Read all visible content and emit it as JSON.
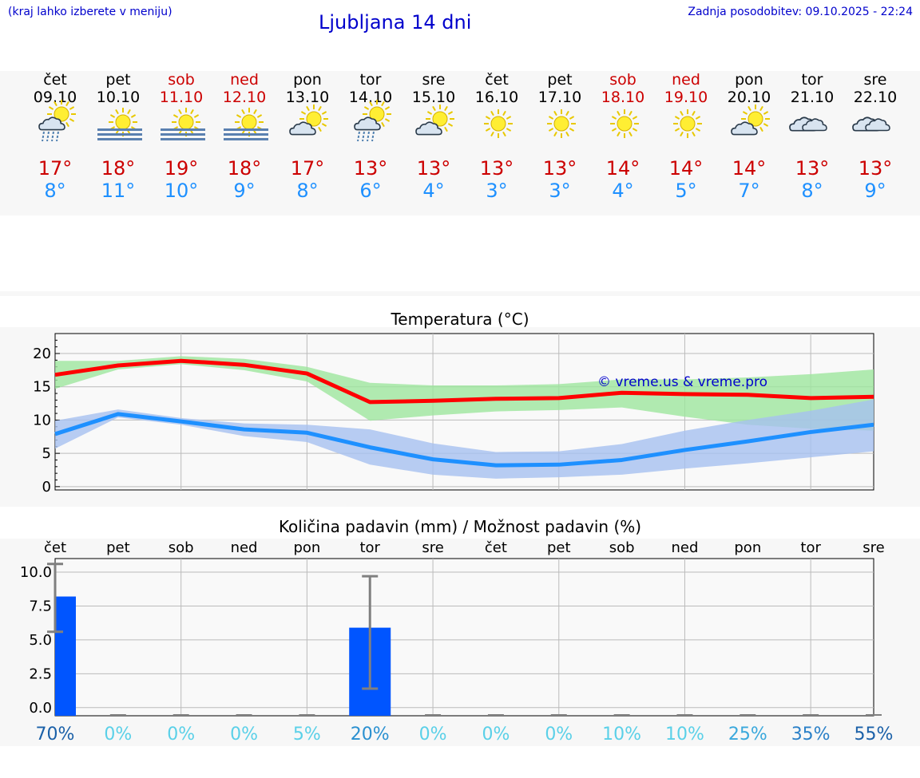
{
  "header": {
    "menu_hint": "(kraj lahko izberete v meniju)",
    "title": "Ljubljana 14 dni",
    "updated": "Zadnja posodobitev: 09.10.2025 - 22:24"
  },
  "colors": {
    "header_text": "#0000cc",
    "weekend": "#cc0000",
    "tmax": "#cc0000",
    "tmin": "#1e90ff",
    "tmax_band": "#9ee69e",
    "tmin_band": "#a6c0f0",
    "max_line": "#ff0000",
    "min_line": "#1e90ff",
    "bar": "#0055ff",
    "watermark": "#0000cc"
  },
  "days": [
    {
      "name": "čet",
      "date": "09.10",
      "weekend": false,
      "icon": "sun-cloud-rain-icon",
      "tmax": "17°",
      "tmin": "8°"
    },
    {
      "name": "pet",
      "date": "10.10",
      "weekend": false,
      "icon": "sun-fog-icon",
      "tmax": "18°",
      "tmin": "11°"
    },
    {
      "name": "sob",
      "date": "11.10",
      "weekend": true,
      "icon": "sun-fog-icon",
      "tmax": "19°",
      "tmin": "10°"
    },
    {
      "name": "ned",
      "date": "12.10",
      "weekend": true,
      "icon": "sun-fog-icon",
      "tmax": "18°",
      "tmin": "9°"
    },
    {
      "name": "pon",
      "date": "13.10",
      "weekend": false,
      "icon": "sun-cloud-icon",
      "tmax": "17°",
      "tmin": "8°"
    },
    {
      "name": "tor",
      "date": "14.10",
      "weekend": false,
      "icon": "sun-cloud-rain-icon",
      "tmax": "13°",
      "tmin": "6°"
    },
    {
      "name": "sre",
      "date": "15.10",
      "weekend": false,
      "icon": "sun-cloud-icon",
      "tmax": "13°",
      "tmin": "4°"
    },
    {
      "name": "čet",
      "date": "16.10",
      "weekend": false,
      "icon": "sun-icon",
      "tmax": "13°",
      "tmin": "3°"
    },
    {
      "name": "pet",
      "date": "17.10",
      "weekend": false,
      "icon": "sun-icon",
      "tmax": "13°",
      "tmin": "3°"
    },
    {
      "name": "sob",
      "date": "18.10",
      "weekend": true,
      "icon": "sun-icon",
      "tmax": "14°",
      "tmin": "4°"
    },
    {
      "name": "ned",
      "date": "19.10",
      "weekend": true,
      "icon": "sun-icon",
      "tmax": "14°",
      "tmin": "5°"
    },
    {
      "name": "pon",
      "date": "20.10",
      "weekend": false,
      "icon": "sun-cloud-icon",
      "tmax": "14°",
      "tmin": "7°"
    },
    {
      "name": "tor",
      "date": "21.10",
      "weekend": false,
      "icon": "cloud-icon",
      "tmax": "13°",
      "tmin": "8°"
    },
    {
      "name": "sre",
      "date": "22.10",
      "weekend": false,
      "icon": "cloud-icon",
      "tmax": "13°",
      "tmin": "9°"
    }
  ],
  "chart_data": [
    {
      "type": "line",
      "title": "Temperatura (°C)",
      "xlabel": "",
      "ylabel": "",
      "ylim": [
        -0.5,
        23
      ],
      "yticks": [
        0,
        5,
        10,
        15,
        20
      ],
      "grid": true,
      "watermark": "© vreme.us & vreme.pro",
      "x": [
        0,
        1,
        2,
        3,
        4,
        5,
        6,
        7,
        8,
        9,
        10,
        11,
        12,
        13
      ],
      "series": [
        {
          "values": [
            16.8,
            18.2,
            18.9,
            18.3,
            17.0,
            12.7,
            12.9,
            13.2,
            13.3,
            14.1,
            13.9,
            13.8,
            13.3,
            13.5
          ],
          "band_low": [
            14.7,
            17.6,
            18.4,
            17.5,
            15.8,
            9.9,
            10.7,
            11.3,
            11.5,
            11.9,
            10.5,
            9.3,
            8.7,
            8.4
          ],
          "band_high": [
            18.9,
            18.9,
            19.6,
            19.2,
            18.0,
            15.6,
            15.2,
            15.2,
            15.4,
            16.1,
            16.1,
            16.4,
            16.9,
            17.6
          ]
        },
        {
          "values": [
            7.9,
            10.9,
            9.8,
            8.6,
            8.1,
            5.9,
            4.1,
            3.2,
            3.3,
            4.0,
            5.5,
            6.8,
            8.2,
            9.3
          ],
          "band_low": [
            5.7,
            10.4,
            9.3,
            7.6,
            6.7,
            3.3,
            1.8,
            1.2,
            1.4,
            1.8,
            2.7,
            3.5,
            4.4,
            5.3
          ],
          "band_high": [
            9.9,
            11.6,
            10.3,
            9.5,
            9.3,
            8.6,
            6.5,
            5.2,
            5.3,
            6.4,
            8.4,
            10.0,
            11.4,
            13.1
          ]
        }
      ]
    },
    {
      "type": "bar",
      "title": "Količina padavin (mm) / Možnost padavin (%)",
      "xlabel": "",
      "ylabel": "",
      "ylim": [
        -0.6,
        11.0
      ],
      "yticks": [
        "0.0",
        "2.5",
        "5.0",
        "7.5",
        "10.0"
      ],
      "grid": true,
      "categories": [
        "čet",
        "pet",
        "sob",
        "ned",
        "pon",
        "tor",
        "sre",
        "čet",
        "pet",
        "sob",
        "ned",
        "pon",
        "tor",
        "sre"
      ],
      "values": [
        8.2,
        0,
        0,
        0,
        0,
        5.9,
        0,
        0,
        0,
        0,
        0,
        0,
        0,
        0
      ],
      "error_low": [
        5.6,
        0,
        0,
        0,
        0,
        1.4,
        0,
        0,
        0,
        0,
        0,
        0,
        0,
        0
      ],
      "error_high": [
        10.6,
        0,
        0,
        0,
        0,
        9.7,
        0,
        0,
        0,
        0,
        0,
        0,
        0,
        0
      ],
      "probability": [
        "70%",
        "0%",
        "0%",
        "0%",
        "5%",
        "20%",
        "0%",
        "0%",
        "0%",
        "10%",
        "10%",
        "25%",
        "35%",
        "55%"
      ],
      "probability_colors": [
        "#1a60a8",
        "#5ad0e8",
        "#5ad0e8",
        "#5ad0e8",
        "#5ad0e8",
        "#2a90d0",
        "#5ad0e8",
        "#5ad0e8",
        "#5ad0e8",
        "#5ad0e8",
        "#5ad0e8",
        "#3aa8dc",
        "#2a80c8",
        "#1a60a8"
      ]
    }
  ]
}
